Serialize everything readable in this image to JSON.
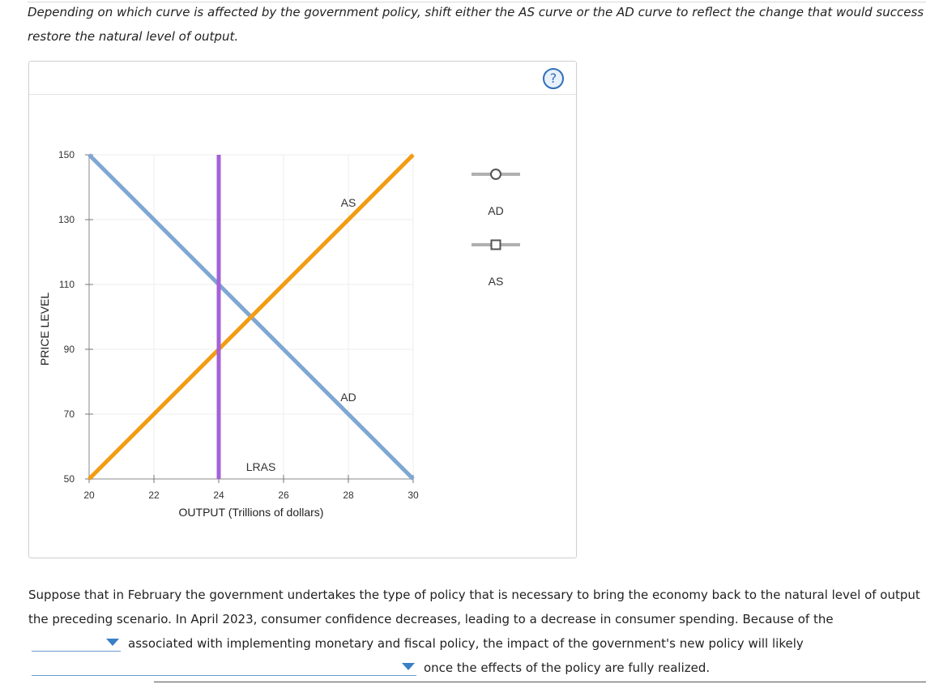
{
  "instructions": {
    "line1": "Depending on which curve is affected by the government policy, shift either the AS curve or the AD curve to reflect the change that would success",
    "line2": "restore the natural level of output."
  },
  "help_label": "?",
  "chart_data": {
    "type": "line",
    "title": "",
    "xlabel": "OUTPUT (Trillions of dollars)",
    "ylabel": "PRICE LEVEL",
    "xlim": [
      20,
      30
    ],
    "ylim": [
      50,
      150
    ],
    "x_ticks": [
      20,
      22,
      24,
      26,
      28,
      30
    ],
    "y_ticks": [
      50,
      70,
      90,
      110,
      130,
      150
    ],
    "grid": true,
    "series": [
      {
        "name": "AD",
        "label": "AD",
        "color": "#7fa7d3",
        "points": [
          [
            20,
            150
          ],
          [
            30,
            50
          ]
        ],
        "label_at": [
          28,
          74
        ]
      },
      {
        "name": "AS",
        "label": "AS",
        "color": "#f39c12",
        "points": [
          [
            20,
            50
          ],
          [
            30,
            150
          ]
        ],
        "label_at": [
          28,
          134
        ]
      },
      {
        "name": "LRAS",
        "label": "LRAS",
        "color": "#a461d8",
        "points": [
          [
            24,
            50
          ],
          [
            24,
            150
          ]
        ],
        "label_at": [
          25.3,
          52.5
        ]
      }
    ],
    "legend": {
      "placement": "right",
      "items": [
        {
          "label": "AD",
          "marker": "circle"
        },
        {
          "label": "AS",
          "marker": "square"
        }
      ]
    }
  },
  "paragraph": {
    "line1": "Suppose that in February the government undertakes the type of policy that is necessary to bring the economy back to the natural level of output",
    "line2": "the preceding scenario. In April 2023, consumer confidence decreases, leading to a decrease in consumer spending. Because of the",
    "line3": "associated with implementing monetary and fiscal policy, the impact of the government's new policy will likely",
    "line4": "once the effects of the policy are fully realized.",
    "dropdown1_value": "",
    "dropdown2_value": ""
  }
}
